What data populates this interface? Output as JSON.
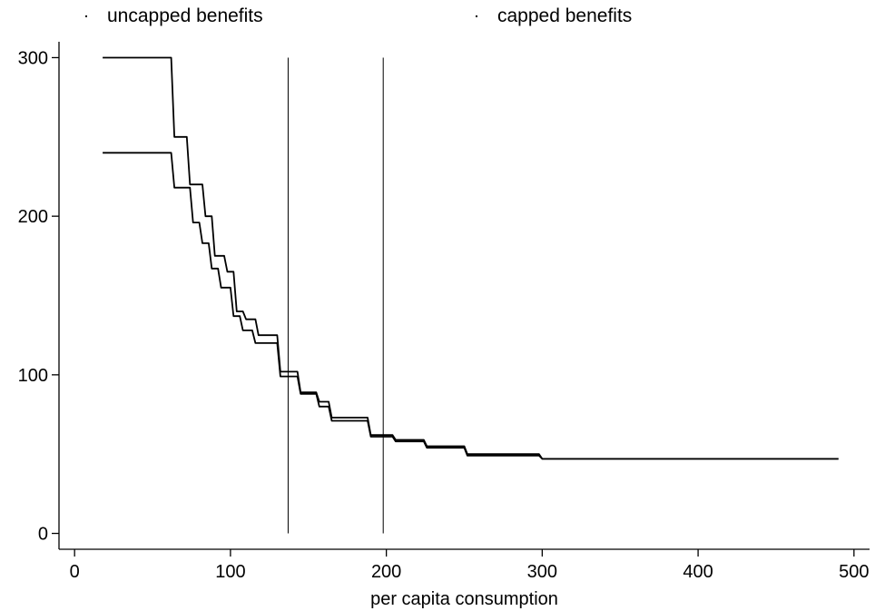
{
  "chart_data": {
    "type": "line",
    "title": "",
    "xlabel": "per capita consumption",
    "ylabel": "",
    "xlim": [
      -10,
      510
    ],
    "ylim": [
      -10,
      310
    ],
    "xticks": [
      0,
      100,
      200,
      300,
      400,
      500
    ],
    "yticks": [
      0,
      100,
      200,
      300
    ],
    "grid": false,
    "legend_position": "top",
    "vlines": [
      137,
      198
    ],
    "series": [
      {
        "name": "uncapped benefits",
        "color": "#000000",
        "x": [
          18,
          62,
          64,
          72,
          74,
          82,
          84,
          88,
          90,
          96,
          98,
          102,
          104,
          108,
          110,
          116,
          118,
          130,
          132,
          143,
          145,
          155,
          157,
          163,
          165,
          188,
          190,
          204,
          206,
          224,
          226,
          250,
          252,
          298,
          300,
          490
        ],
        "y": [
          300,
          300,
          250,
          250,
          220,
          220,
          200,
          200,
          175,
          175,
          165,
          165,
          140,
          140,
          135,
          135,
          125,
          125,
          102,
          102,
          89,
          89,
          83,
          83,
          73,
          73,
          62,
          62,
          59,
          59,
          55,
          55,
          50,
          50,
          47,
          47
        ]
      },
      {
        "name": "capped benefits",
        "color": "#000000",
        "x": [
          18,
          62,
          64,
          74,
          76,
          80,
          82,
          86,
          88,
          92,
          94,
          100,
          102,
          106,
          108,
          114,
          116,
          130,
          132,
          143,
          145,
          155,
          157,
          163,
          165,
          188,
          190,
          204,
          206,
          224,
          226,
          250,
          252,
          298,
          300,
          490
        ],
        "y": [
          240,
          240,
          218,
          218,
          196,
          196,
          183,
          183,
          167,
          167,
          155,
          155,
          137,
          137,
          128,
          128,
          120,
          120,
          99,
          99,
          88,
          88,
          80,
          80,
          71,
          71,
          61,
          61,
          58,
          58,
          54,
          54,
          49,
          49,
          47,
          47
        ]
      }
    ]
  }
}
